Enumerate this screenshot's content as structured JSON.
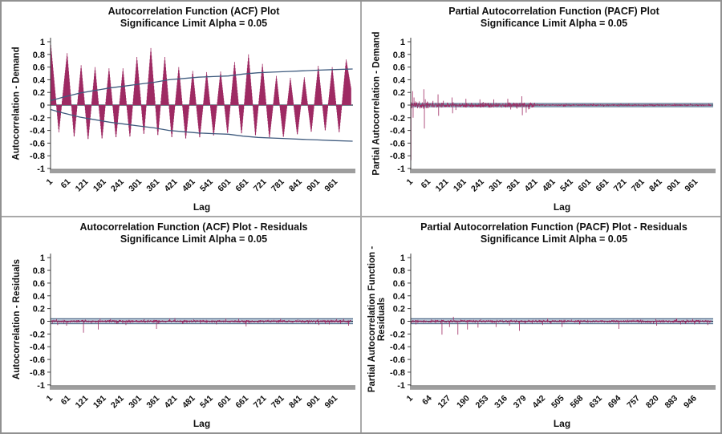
{
  "page": {
    "background": "#ffffff",
    "frame_border_color": "#919191",
    "divider_color": "#a9a9a9"
  },
  "colors": {
    "bar": "#9E2A63",
    "limit_line": "#3F5B7E",
    "band_edge": "#3F5B7E",
    "band_fill": "#C4D4E0",
    "zero_line": "#2B3A4F",
    "axis": "#3A3A3A",
    "baseline": "#9E9E9E",
    "baseline_edge": "#858585",
    "text": "#111111"
  },
  "chart_data": [
    {
      "type": "bar",
      "title_line1": "Autocorrelation Function (ACF) Plot",
      "title_line2": "Significance Limit Alpha = 0.05",
      "ylabel_line1": "Autocorrelation - Demand",
      "ylabel_line2": "",
      "xlabel": "Lag",
      "ylim": [
        -1,
        1
      ],
      "y_tick_labels": [
        "1",
        "0.8",
        "0.6",
        "0.4",
        "0.2",
        "0",
        "-0.2",
        "-0.4",
        "-0.6",
        "-0.8",
        "-1"
      ],
      "x_ticks": [
        1,
        61,
        121,
        181,
        241,
        301,
        361,
        421,
        481,
        541,
        601,
        661,
        721,
        781,
        841,
        901,
        961
      ],
      "x_max": 1020,
      "significance_alpha": 0.05,
      "series_spec": {
        "kind": "seasonal",
        "peak_lags": [
          1,
          57,
          104,
          151,
          198,
          245,
          292,
          339,
          386,
          433,
          480,
          527,
          574,
          621,
          668,
          715,
          762,
          809,
          856,
          903,
          950,
          997
        ],
        "peak_values": [
          1.0,
          0.82,
          0.63,
          0.6,
          0.58,
          0.58,
          0.76,
          0.9,
          0.76,
          0.6,
          0.54,
          0.52,
          0.53,
          0.68,
          0.8,
          0.65,
          0.46,
          0.43,
          0.44,
          0.62,
          0.6,
          0.72
        ],
        "trough_values": [
          -0.43,
          -0.52,
          -0.56,
          -0.55,
          -0.53,
          -0.52,
          -0.48,
          -0.5,
          -0.53,
          -0.55,
          -0.53,
          -0.5,
          -0.46,
          -0.47,
          -0.5,
          -0.53,
          -0.52,
          -0.48,
          -0.44,
          -0.42,
          -0.45
        ]
      },
      "significance_limit": {
        "kind": "curve",
        "lags": [
          1,
          40,
          100,
          150,
          200,
          250,
          300,
          350,
          400,
          450,
          500,
          550,
          600,
          650,
          700,
          750,
          800,
          850,
          900,
          950,
          1019
        ],
        "values": [
          0.07,
          0.12,
          0.19,
          0.23,
          0.27,
          0.3,
          0.33,
          0.36,
          0.4,
          0.42,
          0.44,
          0.45,
          0.46,
          0.49,
          0.51,
          0.52,
          0.53,
          0.54,
          0.55,
          0.56,
          0.57
        ]
      },
      "seed": 7
    },
    {
      "type": "bar",
      "title_line1": "Partial Autocorrelation Function (PACF) Plot",
      "title_line2": "Significance Limit Alpha = 0.05",
      "ylabel_line1": "Partial Autocorrelation - Demand",
      "ylabel_line2": "",
      "xlabel": "Lag",
      "ylim": [
        -1,
        1
      ],
      "y_tick_labels": [
        "1",
        "0.8",
        "0.6",
        "0.4",
        "0.2",
        "0",
        "-0.2",
        "-0.4",
        "-0.6",
        "-0.8",
        "-1"
      ],
      "x_ticks": [
        1,
        61,
        121,
        181,
        241,
        301,
        361,
        421,
        481,
        541,
        601,
        661,
        721,
        781,
        841,
        901,
        961
      ],
      "x_max": 1020,
      "significance_alpha": 0.05,
      "series_spec": {
        "kind": "noise",
        "noise_ranges": [
          [
            1,
            60,
            0.06
          ],
          [
            61,
            420,
            0.04
          ],
          [
            421,
            1013,
            0.015
          ]
        ],
        "outliers": {
          "1": 1.0,
          "2": -0.87,
          "7": 0.22,
          "9": -0.2,
          "12": 0.12,
          "45": 0.25,
          "47": -0.37,
          "93": 0.17,
          "95": -0.17,
          "140": 0.12,
          "142": -0.13,
          "187": 0.1,
          "234": 0.09,
          "281": 0.09,
          "328": 0.1,
          "375": 0.14,
          "377": -0.16,
          "390": -0.12
        }
      },
      "significance_limit": {
        "kind": "band",
        "value": 0.025
      },
      "seed": 11
    },
    {
      "type": "bar",
      "title_line1": "Autocorrelation Function (ACF) Plot - Residuals",
      "title_line2": "Significance Limit Alpha = 0.05",
      "ylabel_line1": "Autocorrelation - Residuals",
      "ylabel_line2": "",
      "xlabel": "Lag",
      "ylim": [
        -1,
        1
      ],
      "y_tick_labels": [
        "1",
        "0.8",
        "0.6",
        "0.4",
        "0.2",
        "0",
        "-0.2",
        "-0.4",
        "-0.6",
        "-0.8",
        "-1"
      ],
      "x_ticks": [
        1,
        61,
        121,
        181,
        241,
        301,
        361,
        421,
        481,
        541,
        601,
        661,
        721,
        781,
        841,
        901,
        961
      ],
      "x_max": 1020,
      "significance_alpha": 0.05,
      "series_spec": {
        "kind": "noise",
        "noise_ranges": [
          [
            1,
            1013,
            0.022
          ]
        ],
        "outliers": {
          "25": -0.06,
          "55": -0.07,
          "112": -0.18,
          "162": -0.13,
          "255": -0.06,
          "358": -0.12,
          "420": 0.05,
          "560": -0.05,
          "660": -0.08,
          "905": -0.06,
          "940": -0.05,
          "1005": -0.07
        }
      },
      "significance_limit": {
        "kind": "band",
        "value": 0.04
      },
      "seed": 23
    },
    {
      "type": "bar",
      "title_line1": "Partial Autocorrelation Function (PACF) Plot - Residuals",
      "title_line2": "Significance Limit Alpha = 0.05",
      "ylabel_line1": "Partial Autocorrelation Function -",
      "ylabel_line2": "Residuals",
      "xlabel": "Lag",
      "ylim": [
        -1,
        1
      ],
      "y_tick_labels": [
        "1",
        "0.8",
        "0.6",
        "0.4",
        "0.2",
        "0",
        "-0.2",
        "-0.4",
        "-0.6",
        "-0.8",
        "-1"
      ],
      "x_ticks": [
        1,
        64,
        127,
        190,
        253,
        316,
        379,
        442,
        505,
        568,
        631,
        694,
        757,
        820,
        883,
        946
      ],
      "x_max": 1008,
      "significance_alpha": 0.05,
      "series_spec": {
        "kind": "noise",
        "noise_ranges": [
          [
            1,
            1001,
            0.022
          ]
        ],
        "outliers": {
          "18": -0.05,
          "105": -0.21,
          "130": -0.09,
          "143": 0.07,
          "158": -0.21,
          "190": -0.13,
          "225": -0.1,
          "285": -0.09,
          "330": -0.07,
          "363": -0.15,
          "440": -0.06,
          "505": -0.09,
          "563": -0.05,
          "694": -0.12,
          "820": -0.07,
          "900": -0.05,
          "946": -0.05,
          "990": -0.06
        }
      },
      "significance_limit": {
        "kind": "band",
        "value": 0.04
      },
      "seed": 37
    }
  ]
}
